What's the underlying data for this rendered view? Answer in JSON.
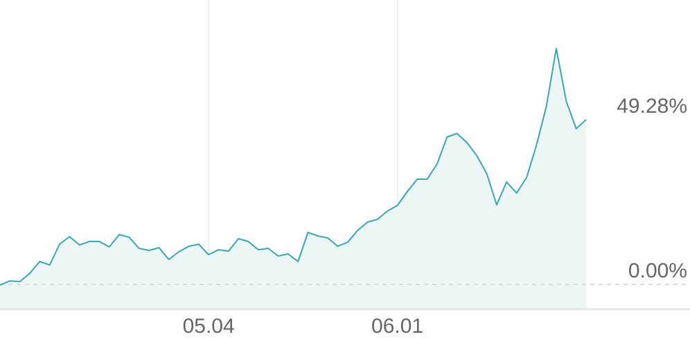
{
  "chart_data": {
    "type": "area",
    "title": "",
    "xlabel": "",
    "ylabel": "",
    "x_ticks": [
      {
        "label": "05.04",
        "index": 21
      },
      {
        "label": "06.01",
        "index": 40
      }
    ],
    "value_labels": [
      {
        "label": "49.28%",
        "value": 49.28
      },
      {
        "label": "0.00%",
        "value": 0
      }
    ],
    "ylim": [
      -7.25,
      85.1
    ],
    "values": [
      -0.21,
      1.04,
      0.83,
      3.31,
      6.83,
      5.8,
      12.01,
      14.29,
      11.8,
      12.84,
      12.84,
      11.18,
      14.91,
      14.08,
      10.77,
      10.15,
      10.97,
      7.45,
      9.73,
      11.39,
      12.01,
      8.9,
      10.35,
      9.94,
      13.67,
      12.84,
      10.35,
      10.77,
      8.49,
      9.11,
      6.83,
      15.53,
      14.49,
      13.87,
      11.39,
      12.63,
      16.15,
      18.64,
      19.46,
      21.95,
      23.61,
      27.75,
      31.47,
      31.47,
      36.03,
      44.1,
      45.14,
      42.45,
      38.51,
      33.13,
      23.81,
      30.64,
      27.33,
      31.89,
      41.62,
      53.21,
      70.61,
      54.87,
      46.59,
      49.28
    ],
    "grid": "vertical lines at x ticks",
    "baseline": "dashed line at 0",
    "colors": {
      "line": "#3aa6b0",
      "fill": "#ecf7f5",
      "grid": "#eeeeee",
      "baseline": "#dddddd",
      "axis": "#e6e6e6",
      "text": "#666666"
    }
  }
}
